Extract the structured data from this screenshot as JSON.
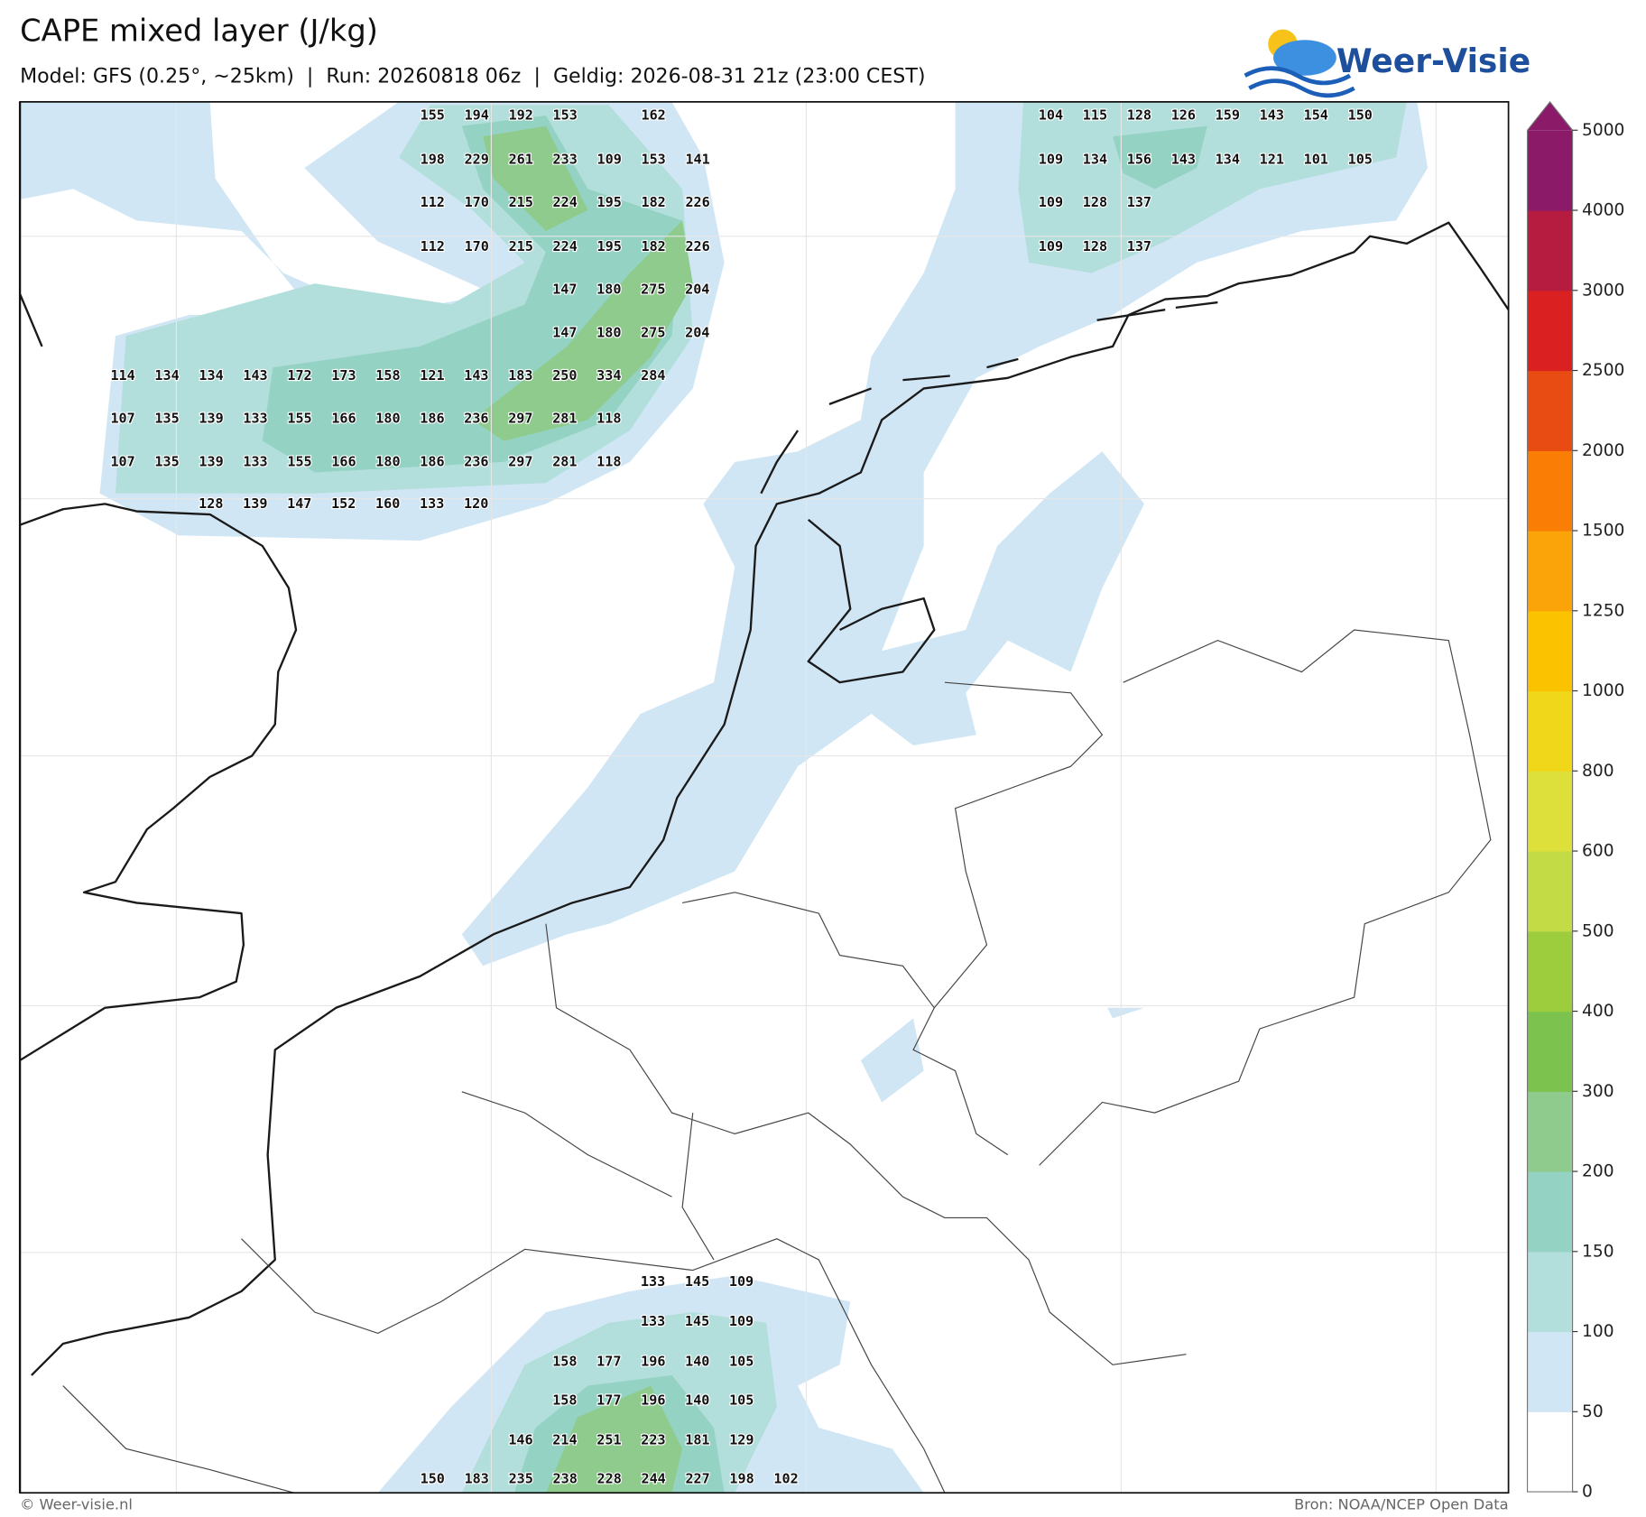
{
  "title": "CAPE mixed layer (J/kg)",
  "subtitle": "Model: GFS (0.25°, ~25km)  |  Run: 20260818 06z  |  Geldig: 2026-08-31 21z (23:00 CEST)",
  "logo": "Weer-Visie",
  "footer_left": "© Weer-visie.nl",
  "footer_right": "Bron: NOAA/NCEP Open Data",
  "colorbar": {
    "ticks": [
      0,
      50,
      100,
      150,
      200,
      300,
      400,
      500,
      600,
      800,
      1000,
      1250,
      1500,
      2000,
      2500,
      3000,
      4000,
      5000
    ],
    "colors": [
      "#ffffff",
      "#d0e6f5",
      "#b2dedb",
      "#94d3c4",
      "#8ecb8c",
      "#7cc24f",
      "#9dcc3d",
      "#c3db45",
      "#dde03a",
      "#f1d71a",
      "#fbc200",
      "#fba40a",
      "#fa7d05",
      "#e84c12",
      "#da2020",
      "#b51c40",
      "#8b1a69"
    ]
  },
  "cape_grid": [
    [
      [
        155,
        194,
        192,
        153,
        null,
        162
      ],
      [
        198,
        229,
        261,
        233,
        109,
        153,
        141
      ],
      [
        112,
        170,
        215,
        224,
        195,
        182,
        226
      ],
      [
        112,
        170,
        215,
        224,
        195,
        182,
        226
      ],
      [
        147,
        180,
        275,
        204
      ],
      [
        147,
        180,
        275,
        204
      ],
      [
        114,
        134,
        134,
        143,
        172,
        173,
        158,
        121,
        143,
        183,
        250,
        334,
        284
      ],
      [
        107,
        135,
        139,
        133,
        155,
        166,
        180,
        186,
        236,
        297,
        281,
        118
      ],
      [
        107,
        135,
        139,
        133,
        155,
        166,
        180,
        186,
        236,
        297,
        281,
        118
      ],
      [
        128,
        139,
        147,
        152,
        160,
        133,
        120
      ]
    ],
    [
      [
        104,
        115,
        128,
        126,
        159,
        143,
        154,
        150
      ],
      [
        109,
        134,
        156,
        143,
        134,
        121,
        101,
        105
      ],
      [
        109,
        128,
        137
      ],
      [
        109,
        128,
        137
      ]
    ],
    [
      [
        133,
        145,
        109
      ],
      [
        133,
        145,
        109
      ],
      [
        158,
        177,
        196,
        140,
        105
      ],
      [
        158,
        177,
        196,
        140,
        105
      ],
      [
        146,
        214,
        251,
        223,
        181,
        129
      ],
      [
        150,
        183,
        235,
        238,
        228,
        244,
        227,
        198,
        102
      ]
    ]
  ]
}
